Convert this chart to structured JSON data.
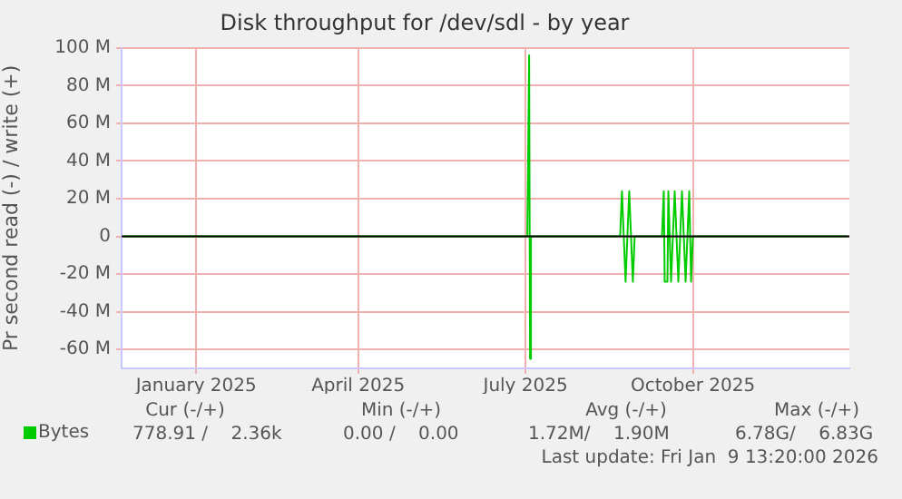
{
  "chart_data": {
    "type": "line",
    "title": "Disk throughput for /dev/sdl - by year",
    "ylabel": "Pr second read (-) / write (+)",
    "x": [
      "2024-12-07",
      "2025-07-17",
      "2025-07-18T00:00",
      "2025-07-18T12:00",
      "2025-07-19",
      "2025-09-06",
      "2025-09-07",
      "2025-09-09",
      "2025-09-11",
      "2025-09-13",
      "2025-09-14",
      "2025-09-29",
      "2025-09-30T00:00",
      "2025-09-30T12:00",
      "2025-10-02T00:00",
      "2025-10-02T12:00",
      "2025-10-04",
      "2025-10-06",
      "2025-10-08",
      "2025-10-10",
      "2025-10-12",
      "2025-10-14",
      "2025-10-15",
      "2025-10-16",
      "2026-01-09"
    ],
    "series": [
      {
        "name": "Bytes",
        "color": "#00cc00",
        "values": [
          0,
          0,
          96,
          -65,
          0,
          0,
          24,
          -24,
          24,
          -24,
          0,
          0,
          24,
          -24,
          -24,
          24,
          -24,
          24,
          -24,
          24,
          -24,
          24,
          -24,
          0,
          0
        ]
      }
    ],
    "xlim": [
      "2024-12-06",
      "2026-01-10"
    ],
    "xticks": [
      {
        "value": "2025-01-16",
        "label": "January 2025"
      },
      {
        "value": "2025-04-15",
        "label": "April 2025"
      },
      {
        "value": "2025-07-16",
        "label": "July 2025"
      },
      {
        "value": "2025-10-16",
        "label": "October 2025"
      }
    ],
    "ylim": [
      -70,
      100
    ],
    "yticks": [
      {
        "value": -60,
        "label": "-60 M"
      },
      {
        "value": -40,
        "label": "-40 M"
      },
      {
        "value": -20,
        "label": "-20 M"
      },
      0,
      {
        "value": 20,
        "label": "20 M"
      },
      {
        "value": 40,
        "label": "40 M"
      },
      {
        "value": 60,
        "label": "60 M"
      },
      {
        "value": 80,
        "label": "80 M"
      },
      {
        "value": 100,
        "label": "100 M"
      }
    ],
    "ref_lines": [
      {
        "axis": "y",
        "value": 0,
        "color": "#000000"
      }
    ],
    "grid": true,
    "legend": "bottom left",
    "marker": "none",
    "line_style": "solid",
    "annotations": [
      "Cur (-/+)",
      "Min (-/+)",
      "Avg (-/+)",
      "Max (-/+)",
      "778.91 /    2.36k",
      "0.00 /    0.00",
      "1.72M/    1.90M",
      "6.78G/    6.83G",
      "Last update: Fri Jan  9 13:20:00 2026"
    ]
  }
}
